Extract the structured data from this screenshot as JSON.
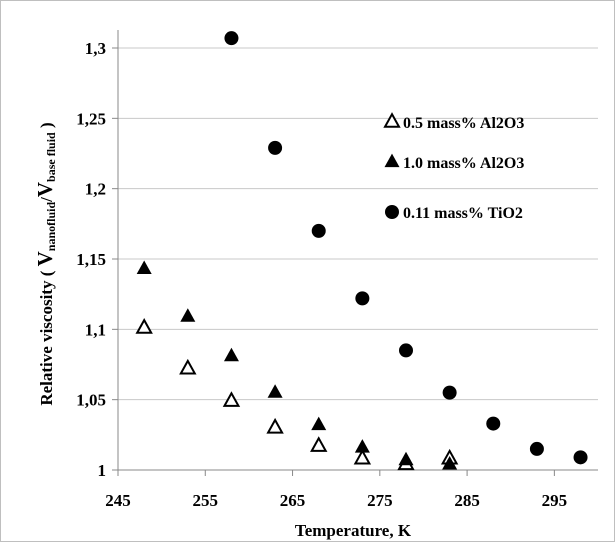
{
  "chart_data": {
    "type": "scatter",
    "title": "",
    "xlabel": "Temperature, K",
    "ylabel_prefix": "Relative viscosity ( ",
    "ylabel_v1": "V",
    "ylabel_sub1": "nanofluid",
    "ylabel_slash": "/",
    "ylabel_v2": "V",
    "ylabel_sub2": "base fluid",
    "ylabel_suffix": " )",
    "xlim": [
      245,
      300
    ],
    "ylim": [
      1,
      1.3
    ],
    "x_ticks": [
      245,
      255,
      265,
      275,
      285,
      295
    ],
    "x_tick_labels": [
      "245",
      "255",
      "265",
      "275",
      "285",
      "295"
    ],
    "y_ticks": [
      1,
      1.05,
      1.1,
      1.15,
      1.2,
      1.25,
      1.3
    ],
    "y_tick_labels": [
      "1",
      "1,05",
      "1,1",
      "1,15",
      "1,2",
      "1,25",
      "1,3"
    ],
    "grid": "horizontal",
    "legend_position": "top-right",
    "series": [
      {
        "name": "0.5 mass% Al2O3",
        "marker": "triangle-open",
        "color": "#000000",
        "x": [
          248,
          253,
          258,
          263,
          268,
          273,
          278,
          283
        ],
        "y": [
          1.101,
          1.072,
          1.049,
          1.03,
          1.017,
          1.008,
          1.004,
          1.008
        ]
      },
      {
        "name": "1.0 mass% Al2O3",
        "marker": "triangle-filled",
        "color": "#000000",
        "x": [
          248,
          253,
          258,
          263,
          268,
          273,
          278,
          283
        ],
        "y": [
          1.143,
          1.109,
          1.081,
          1.055,
          1.032,
          1.016,
          1.007,
          1.004
        ]
      },
      {
        "name": "0.11 mass% TiO2",
        "marker": "circle-filled",
        "color": "#000000",
        "x": [
          258,
          263,
          268,
          273,
          278,
          283,
          288,
          293,
          298
        ],
        "y": [
          1.307,
          1.229,
          1.17,
          1.122,
          1.085,
          1.055,
          1.033,
          1.015,
          1.009
        ]
      }
    ]
  }
}
